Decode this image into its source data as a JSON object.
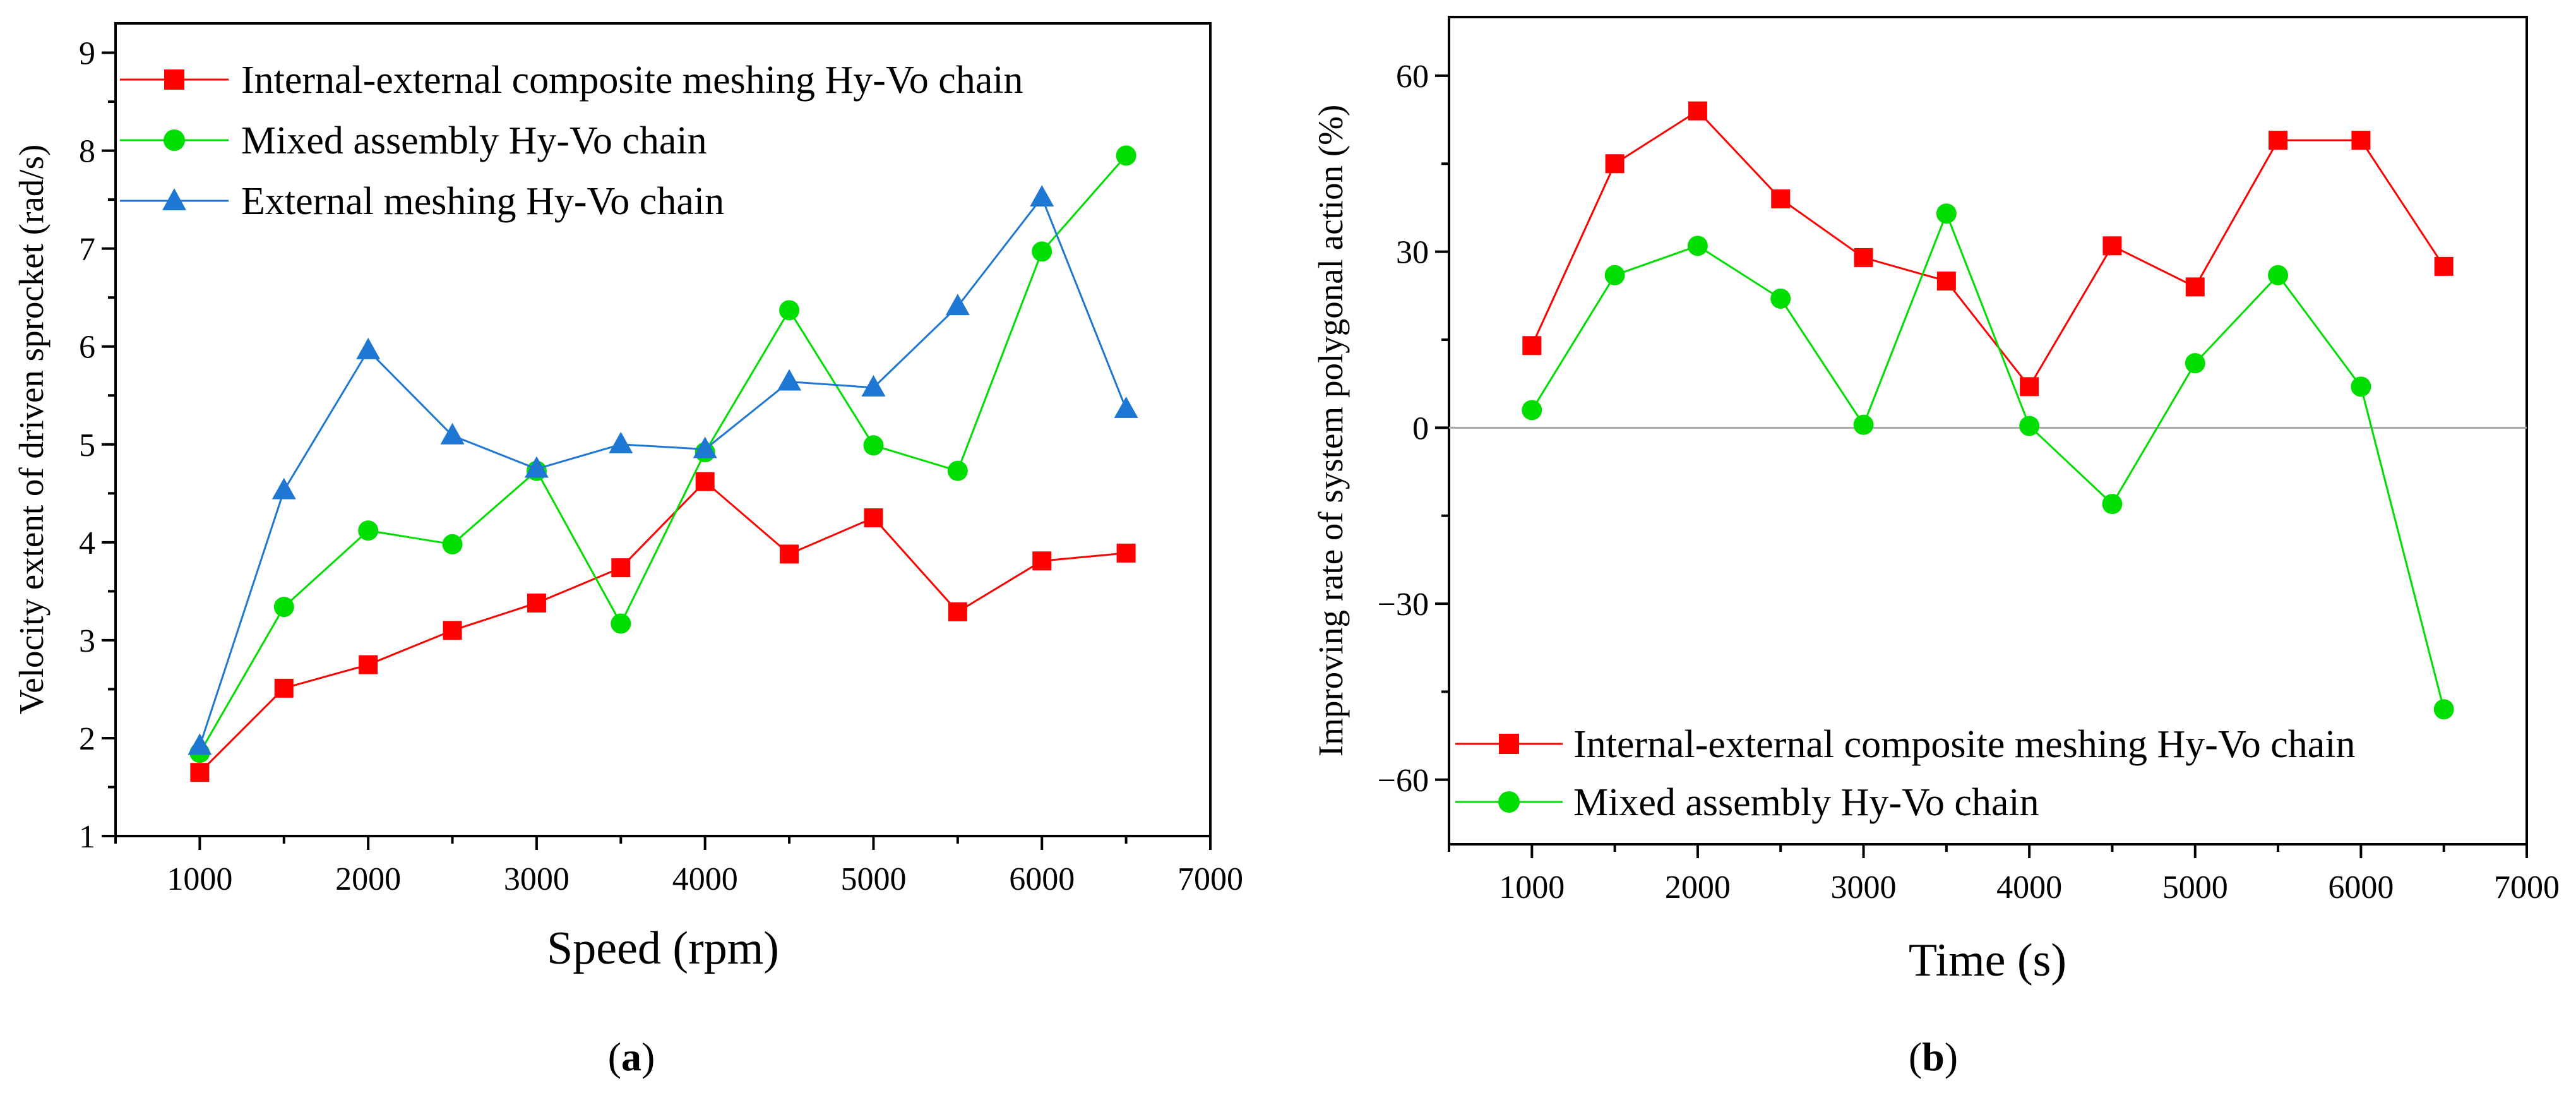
{
  "chart_data": [
    {
      "type": "line",
      "panel_label": "a",
      "title": "",
      "xlabel": "Speed (rpm)",
      "ylabel": "Velocity extent of driven sprocket (rad/s)",
      "xlim": [
        500,
        7000
      ],
      "ylim": [
        1,
        9.3
      ],
      "xticks": [
        1000,
        2000,
        3000,
        4000,
        5000,
        6000,
        7000
      ],
      "yticks": [
        1,
        2,
        3,
        4,
        5,
        6,
        7,
        8,
        9
      ],
      "zero_line": false,
      "legend_position": "top-left",
      "x": [
        1000,
        1500,
        2000,
        2500,
        3000,
        3500,
        4000,
        4500,
        5000,
        5500,
        6000,
        6500
      ],
      "series": [
        {
          "name": "Internal-external composite meshing Hy-Vo chain",
          "color": "#ff0000",
          "marker": "square",
          "values": [
            1.65,
            2.51,
            2.75,
            3.1,
            3.38,
            3.74,
            4.62,
            3.88,
            4.25,
            3.29,
            3.81,
            3.89
          ]
        },
        {
          "name": "Mixed assembly Hy-Vo chain",
          "color": "#00dd00",
          "marker": "circle",
          "values": [
            1.85,
            3.34,
            4.12,
            3.98,
            4.73,
            3.17,
            4.92,
            6.37,
            4.99,
            4.73,
            6.97,
            7.95
          ]
        },
        {
          "name": "External meshing Hy-Vo chain",
          "color": "#1f77d4",
          "marker": "triangle",
          "values": [
            1.92,
            4.53,
            5.96,
            5.09,
            4.75,
            5.0,
            4.95,
            5.64,
            5.58,
            6.41,
            7.52,
            5.36
          ]
        }
      ]
    },
    {
      "type": "line",
      "panel_label": "b",
      "title": "",
      "xlabel": "Time (s)",
      "ylabel": "Improving rate of system polygonal action (%)",
      "xlim": [
        500,
        7000
      ],
      "ylim": [
        -71,
        70
      ],
      "xticks": [
        1000,
        2000,
        3000,
        4000,
        5000,
        6000,
        7000
      ],
      "yticks": [
        60,
        30,
        0,
        -30,
        -60
      ],
      "zero_line": true,
      "legend_position": "bottom-left",
      "x": [
        1000,
        1500,
        2000,
        2500,
        3000,
        3500,
        4000,
        4500,
        5000,
        5500,
        6000,
        6500
      ],
      "series": [
        {
          "name": "Internal-external composite meshing Hy-Vo chain",
          "color": "#ff0000",
          "marker": "square",
          "values": [
            14,
            45,
            54,
            39,
            29,
            25,
            7,
            31,
            24,
            49,
            49,
            27.5
          ]
        },
        {
          "name": "Mixed assembly Hy-Vo chain",
          "color": "#00dd00",
          "marker": "circle",
          "values": [
            3,
            26,
            31,
            22,
            0.5,
            36.5,
            0.3,
            -13,
            11,
            26,
            7,
            -48
          ]
        }
      ]
    }
  ]
}
